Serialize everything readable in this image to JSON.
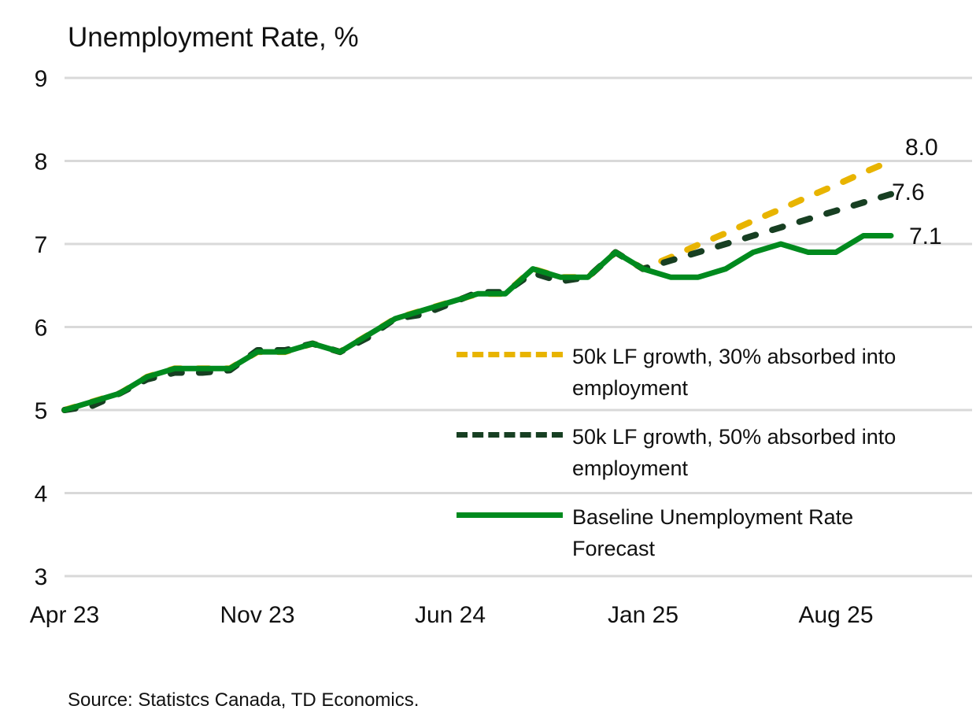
{
  "chart_data": {
    "type": "line",
    "title": "Unemployment Rate, %",
    "xlabel": "",
    "ylabel": "",
    "ylim": [
      3,
      9
    ],
    "yticks": [
      "3",
      "4",
      "5",
      "6",
      "7",
      "8",
      "9"
    ],
    "xtick_labels": [
      "Apr 23",
      "Nov 23",
      "Jun 24",
      "Jan 25",
      "Aug 25"
    ],
    "grid": "horizontal",
    "legend_placement": "center-right",
    "x": [
      "Apr 23",
      "May 23",
      "Jun 23",
      "Jul 23",
      "Aug 23",
      "Sep 23",
      "Oct 23",
      "Nov 23",
      "Dec 23",
      "Jan 24",
      "Feb 24",
      "Mar 24",
      "Apr 24",
      "May 24",
      "Jun 24",
      "Jul 24",
      "Aug 24",
      "Sep 24",
      "Oct 24",
      "Nov 24",
      "Dec 24",
      "Jan 25",
      "Feb 25",
      "Mar 25",
      "Apr 25",
      "May 25",
      "Jun 25",
      "Jul 25",
      "Aug 25",
      "Sep 25",
      "Oct 25"
    ],
    "series": [
      {
        "name": "50k LF growth, 30% absorbed into employment",
        "color": "#E8B400",
        "style": "dashed",
        "end_label": "8.0",
        "values": [
          5.0,
          5.1,
          5.2,
          5.4,
          5.5,
          5.5,
          5.5,
          5.7,
          5.7,
          5.8,
          5.7,
          5.9,
          6.1,
          6.2,
          6.3,
          6.4,
          6.4,
          6.7,
          6.6,
          6.6,
          6.9,
          6.7,
          6.84,
          6.99,
          7.13,
          7.28,
          7.42,
          7.57,
          7.71,
          7.86,
          8.0
        ]
      },
      {
        "name": "50k LF growth, 50% absorbed into employment",
        "color": "#173F22",
        "style": "dashed",
        "end_label": "7.6",
        "values": [
          5.0,
          5.05,
          5.2,
          5.37,
          5.45,
          5.45,
          5.48,
          5.72,
          5.72,
          5.8,
          5.7,
          5.87,
          6.1,
          6.15,
          6.28,
          6.42,
          6.42,
          6.65,
          6.55,
          6.6,
          6.9,
          6.7,
          6.8,
          6.9,
          7.0,
          7.1,
          7.2,
          7.3,
          7.4,
          7.5,
          7.6
        ]
      },
      {
        "name": "Baseline Unemployment Rate Forecast",
        "color": "#008A1E",
        "style": "solid",
        "end_label": "7.1",
        "values": [
          5.0,
          5.1,
          5.2,
          5.4,
          5.5,
          5.5,
          5.5,
          5.7,
          5.7,
          5.8,
          5.7,
          5.9,
          6.1,
          6.2,
          6.3,
          6.4,
          6.4,
          6.7,
          6.6,
          6.6,
          6.9,
          6.7,
          6.6,
          6.6,
          6.7,
          6.9,
          7.0,
          6.9,
          6.9,
          7.1,
          7.1
        ]
      }
    ],
    "source": "Source: Statistcs Canada, TD Economics."
  }
}
